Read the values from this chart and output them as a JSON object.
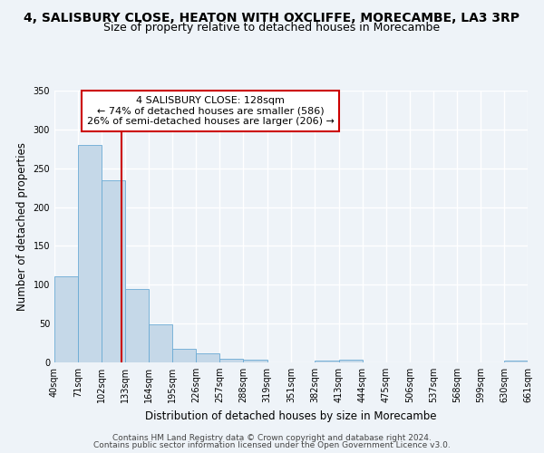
{
  "title": "4, SALISBURY CLOSE, HEATON WITH OXCLIFFE, MORECAMBE, LA3 3RP",
  "subtitle": "Size of property relative to detached houses in Morecambe",
  "xlabel": "Distribution of detached houses by size in Morecambe",
  "ylabel": "Number of detached properties",
  "footnote1": "Contains HM Land Registry data © Crown copyright and database right 2024.",
  "footnote2": "Contains public sector information licensed under the Open Government Licence v3.0.",
  "bar_color": "#c5d8e8",
  "bar_edge_color": "#6aaad4",
  "annotation_box_color": "#ffffff",
  "annotation_box_edge": "#cc0000",
  "vline_color": "#cc0000",
  "vline_x": 128,
  "annotation_line1": "4 SALISBURY CLOSE: 128sqm",
  "annotation_line2": "← 74% of detached houses are smaller (586)",
  "annotation_line3": "26% of semi-detached houses are larger (206) →",
  "bin_edges": [
    40,
    71,
    102,
    133,
    164,
    195,
    226,
    257,
    288,
    319,
    351,
    382,
    413,
    444,
    475,
    506,
    537,
    568,
    599,
    630,
    661
  ],
  "bin_labels": [
    "40sqm",
    "71sqm",
    "102sqm",
    "133sqm",
    "164sqm",
    "195sqm",
    "226sqm",
    "257sqm",
    "288sqm",
    "319sqm",
    "351sqm",
    "382sqm",
    "413sqm",
    "444sqm",
    "475sqm",
    "506sqm",
    "537sqm",
    "568sqm",
    "599sqm",
    "630sqm",
    "661sqm"
  ],
  "bar_heights": [
    111,
    280,
    235,
    95,
    49,
    18,
    12,
    5,
    3,
    0,
    0,
    2,
    3,
    0,
    0,
    0,
    0,
    0,
    0,
    2,
    2
  ],
  "ylim": [
    0,
    350
  ],
  "yticks": [
    0,
    50,
    100,
    150,
    200,
    250,
    300,
    350
  ],
  "background_color": "#eef3f8",
  "plot_background": "#eef3f8",
  "grid_color": "#ffffff",
  "title_fontsize": 10,
  "subtitle_fontsize": 9,
  "axis_label_fontsize": 8.5,
  "tick_fontsize": 7,
  "annotation_fontsize": 8,
  "footnote_fontsize": 6.5
}
